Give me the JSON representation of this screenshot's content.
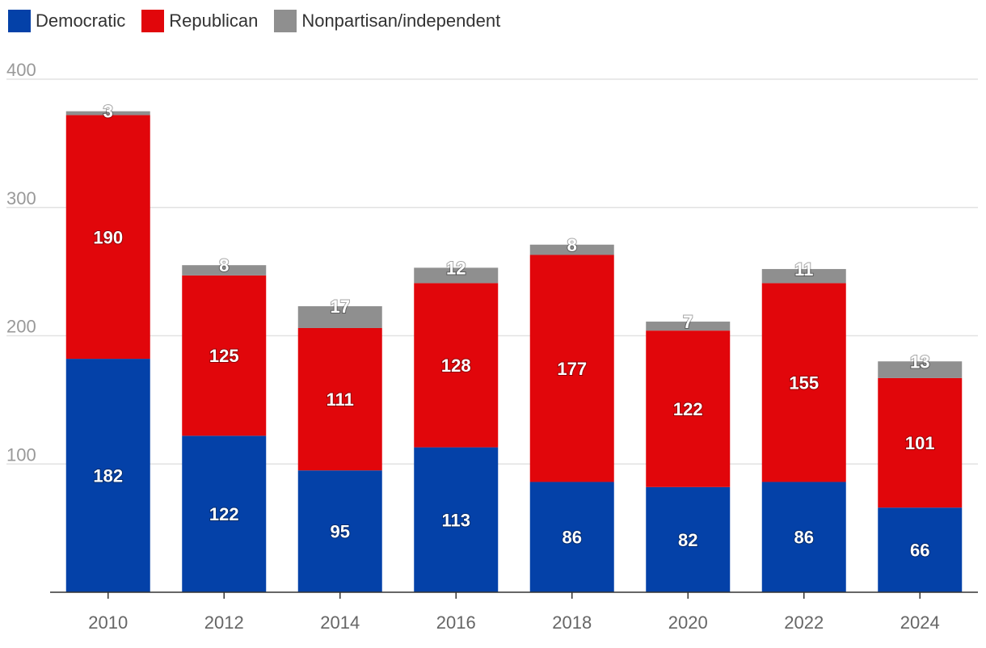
{
  "chart_data": {
    "type": "bar",
    "stacked": true,
    "categories": [
      "2010",
      "2012",
      "2014",
      "2016",
      "2018",
      "2020",
      "2022",
      "2024"
    ],
    "series": [
      {
        "name": "Democratic",
        "color": "#0441a8",
        "values": [
          182,
          122,
          95,
          113,
          86,
          82,
          86,
          66
        ]
      },
      {
        "name": "Republican",
        "color": "#e1060b",
        "values": [
          190,
          125,
          111,
          128,
          177,
          122,
          155,
          101
        ]
      },
      {
        "name": "Nonpartisan/independent",
        "color": "#8f8f8f",
        "values": [
          3,
          8,
          17,
          12,
          8,
          7,
          11,
          13
        ]
      }
    ],
    "yticks": [
      "100",
      "200",
      "300",
      "400"
    ],
    "ylim": [
      0,
      400
    ],
    "grid": true,
    "legend": "top-left",
    "title": "",
    "xlabel": "",
    "ylabel": ""
  }
}
